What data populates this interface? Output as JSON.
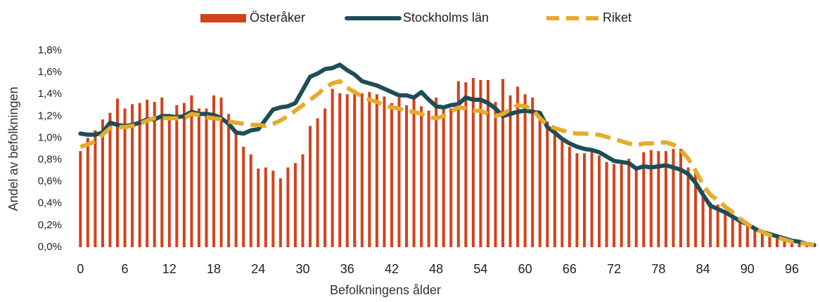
{
  "chart_data": {
    "type": "bar",
    "xlabel": "Befolkningens ålder",
    "ylabel": "Andel av befolkningen",
    "xlim": [
      -0.6,
      99.6
    ],
    "xticks": [
      0,
      6,
      12,
      18,
      24,
      30,
      36,
      42,
      48,
      54,
      60,
      66,
      72,
      78,
      84,
      90,
      96
    ],
    "ylim": [
      0,
      1.8
    ],
    "yticks": [
      {
        "value": 0,
        "label": "0,0%"
      },
      {
        "value": 0.2,
        "label": "0,2%"
      },
      {
        "value": 0.4,
        "label": "0,4%"
      },
      {
        "value": 0.6,
        "label": "0,6%"
      },
      {
        "value": 0.8,
        "label": "0,8%"
      },
      {
        "value": 1.0,
        "label": "1,0%"
      },
      {
        "value": 1.2,
        "label": "1,2%"
      },
      {
        "value": 1.4,
        "label": "1,4%"
      },
      {
        "value": 1.6,
        "label": "1,6%"
      },
      {
        "value": 1.8,
        "label": "1,8%"
      }
    ],
    "legend": "top",
    "x": [
      0,
      1,
      2,
      3,
      4,
      5,
      6,
      7,
      8,
      9,
      10,
      11,
      12,
      13,
      14,
      15,
      16,
      17,
      18,
      19,
      20,
      21,
      22,
      23,
      24,
      25,
      26,
      27,
      28,
      29,
      30,
      31,
      32,
      33,
      34,
      35,
      36,
      37,
      38,
      39,
      40,
      41,
      42,
      43,
      44,
      45,
      46,
      47,
      48,
      49,
      50,
      51,
      52,
      53,
      54,
      55,
      56,
      57,
      58,
      59,
      60,
      61,
      62,
      63,
      64,
      65,
      66,
      67,
      68,
      69,
      70,
      71,
      72,
      73,
      74,
      75,
      76,
      77,
      78,
      79,
      80,
      81,
      82,
      83,
      84,
      85,
      86,
      87,
      88,
      89,
      90,
      91,
      92,
      93,
      94,
      95,
      96,
      97,
      98,
      99
    ],
    "series": [
      {
        "name": "Österåker",
        "type": "bar",
        "color": "#d2421a",
        "values": [
          0.88,
          1.0,
          1.07,
          1.17,
          1.23,
          1.36,
          1.27,
          1.31,
          1.32,
          1.35,
          1.33,
          1.37,
          1.19,
          1.3,
          1.32,
          1.39,
          1.27,
          1.27,
          1.39,
          1.37,
          1.22,
          1.07,
          0.92,
          0.85,
          0.72,
          0.73,
          0.7,
          0.63,
          0.73,
          0.77,
          0.85,
          1.11,
          1.18,
          1.27,
          1.45,
          1.41,
          1.4,
          1.44,
          1.41,
          1.42,
          1.4,
          1.38,
          1.32,
          1.37,
          1.3,
          1.38,
          1.29,
          1.25,
          1.37,
          1.29,
          1.27,
          1.52,
          1.51,
          1.55,
          1.53,
          1.53,
          1.33,
          1.54,
          1.39,
          1.47,
          1.4,
          1.37,
          1.24,
          1.15,
          1.03,
          0.97,
          0.92,
          0.86,
          0.86,
          0.87,
          0.84,
          0.78,
          0.76,
          0.76,
          0.81,
          0.73,
          0.87,
          0.89,
          0.88,
          0.88,
          0.9,
          0.9,
          0.73,
          0.68,
          0.52,
          0.41,
          0.39,
          0.33,
          0.3,
          0.25,
          0.21,
          0.17,
          0.14,
          0.1,
          0.08,
          0.06,
          0.04,
          0.03,
          0.02,
          0.01
        ]
      },
      {
        "name": "Stockholms län",
        "type": "line",
        "color": "#1f4d57",
        "values": [
          1.04,
          1.03,
          1.03,
          1.05,
          1.14,
          1.12,
          1.11,
          1.12,
          1.14,
          1.17,
          1.17,
          1.2,
          1.2,
          1.19,
          1.2,
          1.24,
          1.22,
          1.22,
          1.21,
          1.18,
          1.13,
          1.05,
          1.04,
          1.07,
          1.08,
          1.17,
          1.26,
          1.28,
          1.29,
          1.32,
          1.44,
          1.56,
          1.59,
          1.63,
          1.64,
          1.67,
          1.62,
          1.58,
          1.52,
          1.5,
          1.48,
          1.45,
          1.42,
          1.39,
          1.39,
          1.37,
          1.42,
          1.35,
          1.29,
          1.28,
          1.3,
          1.31,
          1.37,
          1.35,
          1.35,
          1.32,
          1.27,
          1.2,
          1.22,
          1.24,
          1.25,
          1.24,
          1.23,
          1.1,
          1.05,
          0.99,
          0.95,
          0.92,
          0.9,
          0.89,
          0.87,
          0.83,
          0.79,
          0.78,
          0.77,
          0.72,
          0.74,
          0.73,
          0.74,
          0.75,
          0.73,
          0.71,
          0.67,
          0.59,
          0.48,
          0.38,
          0.35,
          0.32,
          0.28,
          0.24,
          0.21,
          0.17,
          0.14,
          0.12,
          0.1,
          0.08,
          0.06,
          0.05,
          0.03,
          0.02
        ]
      },
      {
        "name": "Riket",
        "type": "line",
        "dashed": true,
        "color": "#e6aa2c",
        "values": [
          0.92,
          0.94,
          0.97,
          1.03,
          1.09,
          1.1,
          1.1,
          1.11,
          1.13,
          1.16,
          1.18,
          1.18,
          1.18,
          1.18,
          1.18,
          1.22,
          1.21,
          1.19,
          1.18,
          1.17,
          1.15,
          1.14,
          1.13,
          1.12,
          1.12,
          1.11,
          1.13,
          1.16,
          1.2,
          1.25,
          1.3,
          1.35,
          1.4,
          1.46,
          1.5,
          1.52,
          1.46,
          1.42,
          1.38,
          1.35,
          1.33,
          1.3,
          1.28,
          1.27,
          1.24,
          1.24,
          1.22,
          1.19,
          1.18,
          1.2,
          1.24,
          1.28,
          1.27,
          1.25,
          1.25,
          1.22,
          1.2,
          1.22,
          1.26,
          1.3,
          1.29,
          1.26,
          1.18,
          1.12,
          1.09,
          1.07,
          1.05,
          1.04,
          1.04,
          1.03,
          1.03,
          1.01,
          0.99,
          0.97,
          0.95,
          0.93,
          0.95,
          0.95,
          0.96,
          0.96,
          0.94,
          0.89,
          0.81,
          0.7,
          0.57,
          0.48,
          0.43,
          0.37,
          0.32,
          0.26,
          0.21,
          0.17,
          0.14,
          0.11,
          0.09,
          0.07,
          0.05,
          0.04,
          0.03,
          0.02
        ]
      }
    ]
  }
}
